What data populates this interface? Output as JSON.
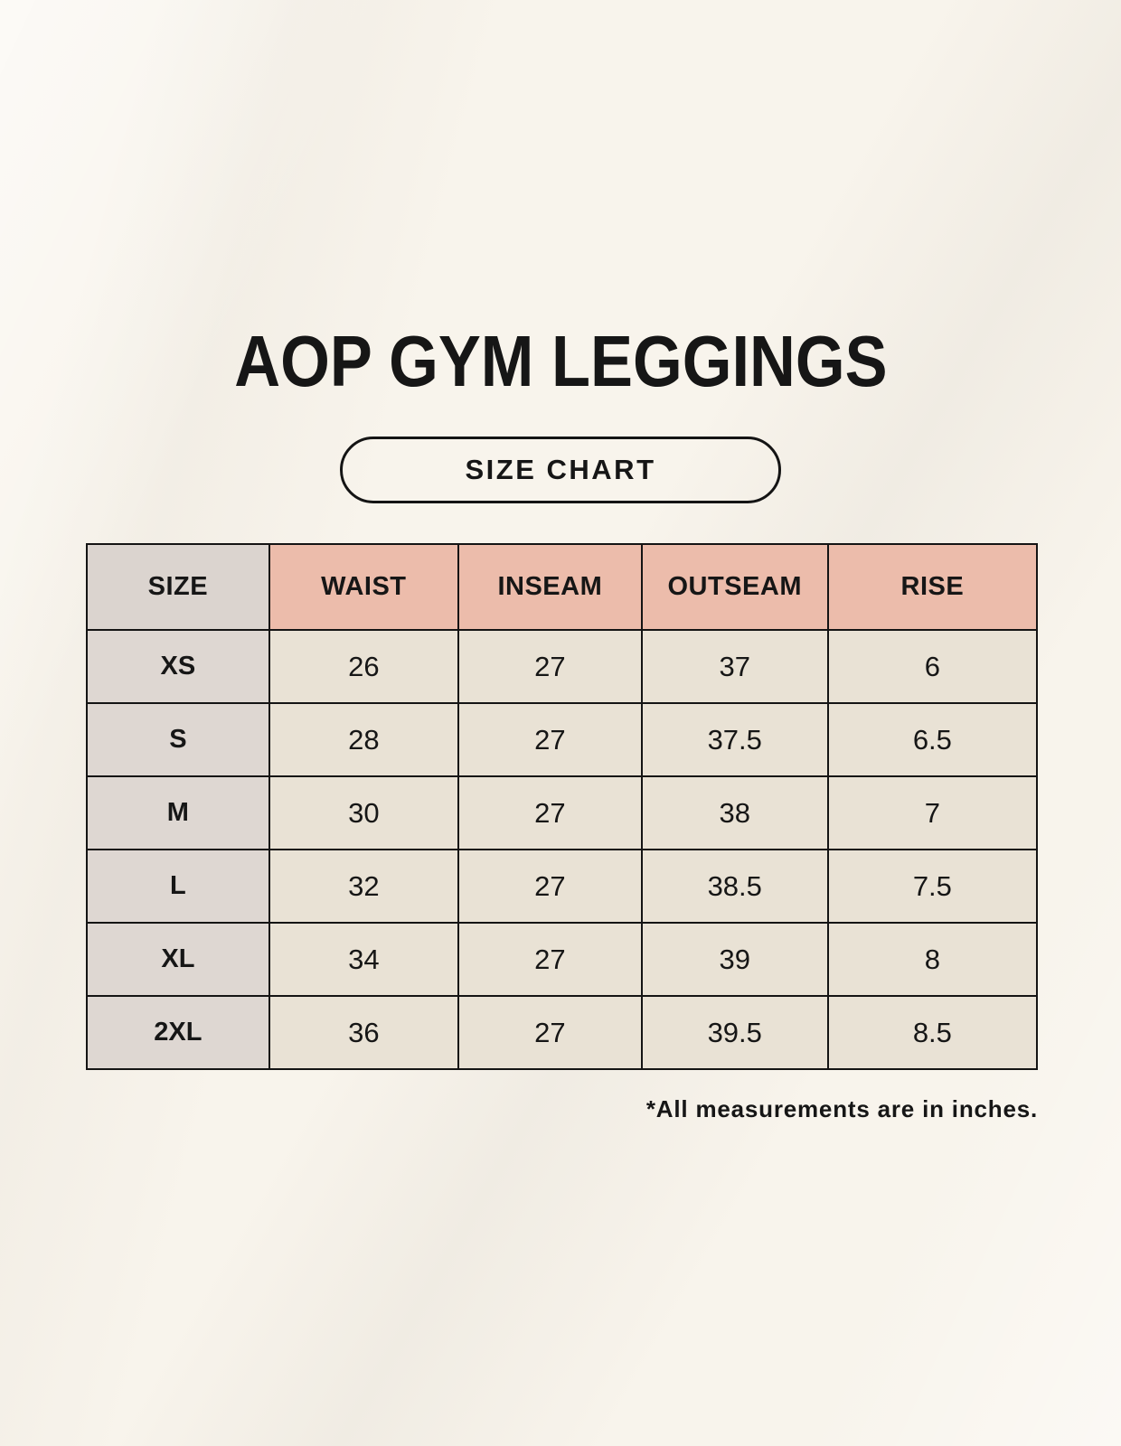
{
  "page": {
    "title": "AOP GYM LEGGINGS",
    "badge_label": "SIZE CHART",
    "footnote": "*All measurements are in inches."
  },
  "colors": {
    "background": "#f8f4ec",
    "header_pink": "#ecbcab",
    "size_column_gray": "#ded7d2",
    "cell_cream": "#e9e2d5",
    "border_black": "#141414",
    "text": "#161616"
  },
  "chart_data": {
    "type": "table",
    "title": "AOP GYM LEGGINGS",
    "subtitle": "SIZE CHART",
    "units": "inches",
    "columns": [
      "SIZE",
      "WAIST",
      "INSEAM",
      "OUTSEAM",
      "RISE"
    ],
    "rows": [
      {
        "size": "XS",
        "values": [
          "26",
          "27",
          "37",
          "6"
        ]
      },
      {
        "size": "S",
        "values": [
          "28",
          "27",
          "37.5",
          "6.5"
        ]
      },
      {
        "size": "M",
        "values": [
          "30",
          "27",
          "38",
          "7"
        ]
      },
      {
        "size": "L",
        "values": [
          "32",
          "27",
          "38.5",
          "7.5"
        ]
      },
      {
        "size": "XL",
        "values": [
          "34",
          "27",
          "39",
          "8"
        ]
      },
      {
        "size": "2XL",
        "values": [
          "36",
          "27",
          "39.5",
          "8.5"
        ]
      }
    ],
    "footnote": "*All measurements are in inches."
  }
}
